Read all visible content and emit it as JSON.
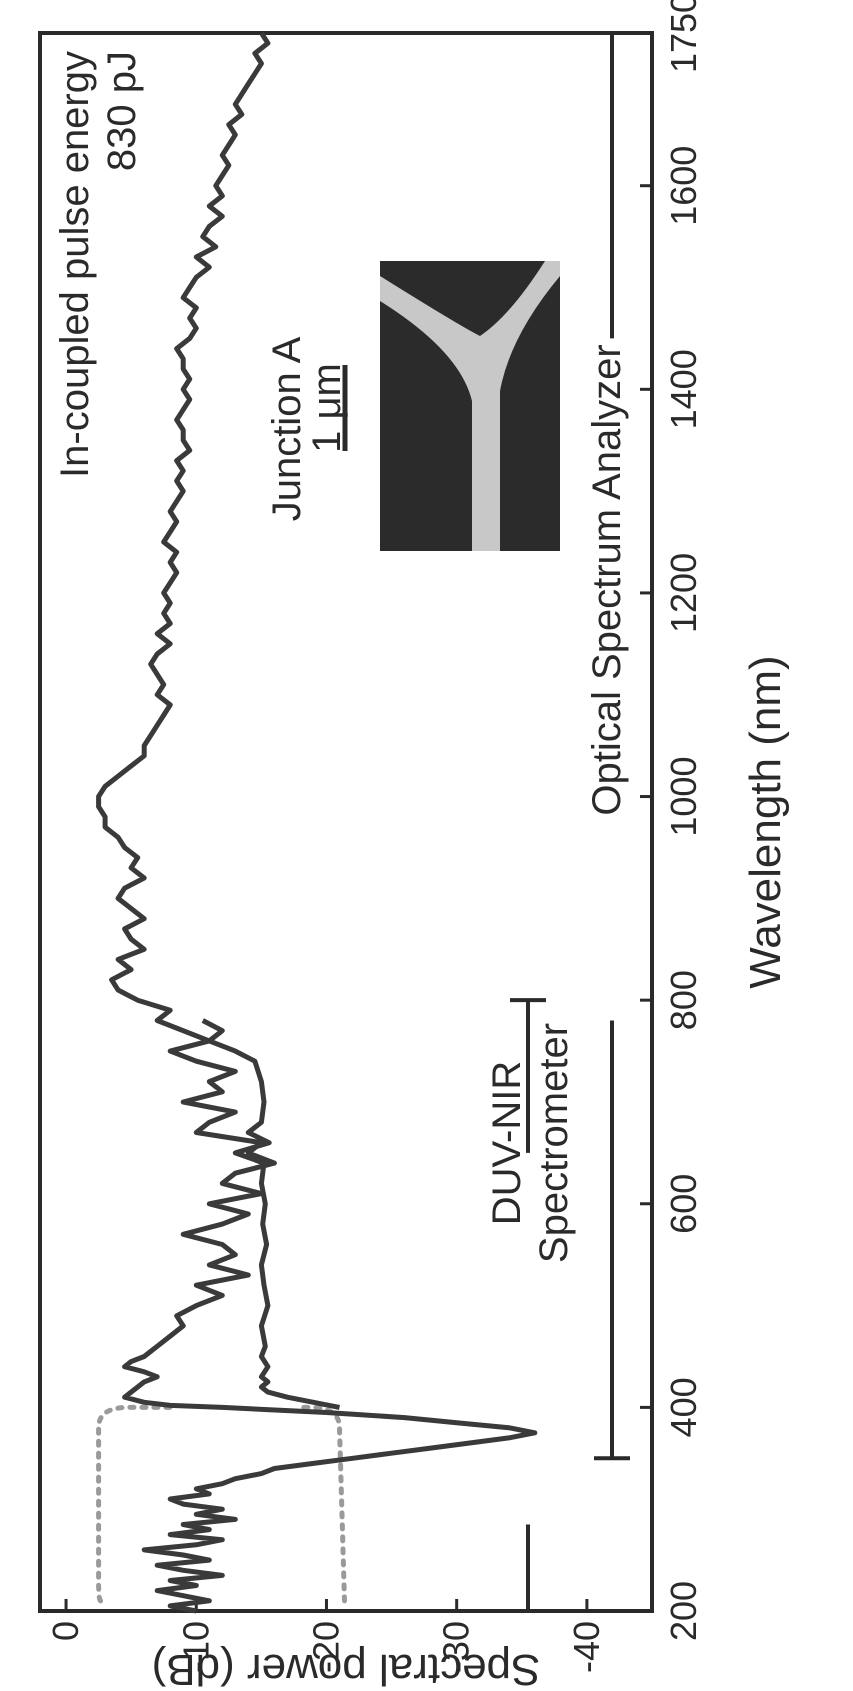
{
  "chart_data": {
    "type": "line",
    "title": "",
    "xlabel": "Wavelength (nm)",
    "ylabel": "Spectral power (dB)",
    "xlim": [
      200,
      1750
    ],
    "ylim": [
      -45,
      2
    ],
    "x_ticks": [
      200,
      400,
      600,
      800,
      1000,
      1200,
      1400,
      1600,
      1750
    ],
    "y_ticks": [
      0,
      -10,
      -20,
      -30,
      -40
    ],
    "grid": false,
    "legend": "none",
    "annotations": {
      "pulse_energy_line1": "In-coupled pulse energy",
      "pulse_energy_line2": "830 pJ",
      "junction_label": "Junction A",
      "scale_bar_label": "1 μm",
      "duv_line1": "DUV-NIR",
      "duv_line2": "Spectrometer",
      "osa_label": "Optical Spectrum Analyzer"
    },
    "instrument_ranges": {
      "duv_nir_spectrometer": [
        200,
        800
      ],
      "optical_spectrum_analyzer": [
        350,
        1750
      ]
    },
    "dotted_guides": {
      "color": "#9a9a9a",
      "upper_level": -2.5,
      "lower_level": -21,
      "x_start": 210,
      "x_end": 400
    },
    "series": [
      {
        "color": "#3a3a3a",
        "x": [
          200,
          205,
          210,
          215,
          220,
          225,
          230,
          235,
          240,
          245,
          250,
          255,
          260,
          265,
          270,
          275,
          280,
          285,
          290,
          295,
          300,
          305,
          310,
          315,
          320,
          325,
          330,
          335,
          340,
          345,
          350,
          355,
          360,
          365,
          370,
          375,
          380,
          385,
          390,
          395,
          400,
          402,
          405,
          410,
          415,
          420,
          425,
          430,
          435,
          440,
          445,
          450,
          455,
          460,
          470,
          480,
          490,
          500,
          510,
          520,
          530,
          540,
          550,
          560,
          570,
          580,
          590,
          600,
          610,
          620,
          630,
          640,
          650,
          660,
          670,
          680,
          690,
          700,
          710,
          720,
          730,
          740,
          750,
          760,
          770,
          780,
          790,
          800,
          810,
          820,
          830,
          840,
          850,
          860,
          870,
          880,
          890,
          900,
          910,
          920,
          930,
          940,
          950,
          960,
          970,
          980,
          990,
          1000,
          1010,
          1020,
          1030,
          1040,
          1050,
          1060,
          1070,
          1080,
          1090,
          1100,
          1110,
          1120,
          1130,
          1140,
          1150,
          1160,
          1170,
          1180,
          1190,
          1200,
          1210,
          1220,
          1230,
          1240,
          1250,
          1260,
          1270,
          1280,
          1290,
          1300,
          1310,
          1320,
          1330,
          1340,
          1350,
          1360,
          1370,
          1380,
          1390,
          1400,
          1410,
          1420,
          1430,
          1440,
          1450,
          1460,
          1470,
          1480,
          1490,
          1500,
          1510,
          1520,
          1530,
          1540,
          1550,
          1560,
          1570,
          1580,
          1590,
          1600,
          1610,
          1620,
          1630,
          1640,
          1650,
          1660,
          1670,
          1680,
          1690,
          1700,
          1710,
          1720,
          1730,
          1740,
          1750
        ],
        "y": [
          -10,
          -8,
          -11,
          -9,
          -7,
          -10,
          -8,
          -12,
          -9,
          -7,
          -11,
          -9,
          -6,
          -10,
          -12,
          -8,
          -11,
          -9,
          -13,
          -10,
          -12,
          -9,
          -8,
          -11,
          -10,
          -12,
          -13,
          -15,
          -16,
          -19,
          -22,
          -25,
          -28,
          -31,
          -34,
          -36,
          -34,
          -30,
          -26,
          -20,
          -12,
          -8,
          -6,
          -4.5,
          -5,
          -5.5,
          -6,
          -7,
          -6,
          -4.5,
          -5,
          -6,
          -6.5,
          -7,
          -8,
          -9,
          -8.5,
          -10,
          -12,
          -10,
          -14,
          -11,
          -13,
          -12,
          -9,
          -12,
          -14,
          -11,
          -15,
          -12,
          -13,
          -16,
          -14,
          -15,
          -10,
          -11,
          -13,
          -9,
          -12,
          -11,
          -13,
          -10,
          -8,
          -11,
          -9,
          -7,
          -8,
          -5.5,
          -4,
          -3.5,
          -5,
          -4,
          -6,
          -5,
          -4.5,
          -6,
          -5,
          -4,
          -4.5,
          -6,
          -5,
          -5.5,
          -4.5,
          -4,
          -3,
          -3,
          -2.5,
          -2.5,
          -3,
          -4,
          -5,
          -6,
          -6,
          -6.5,
          -7,
          -7.5,
          -8,
          -7,
          -7.5,
          -7,
          -6.5,
          -7,
          -8,
          -7,
          -8,
          -7.5,
          -8,
          -7.5,
          -8,
          -8.5,
          -8,
          -8.5,
          -7.5,
          -8,
          -8.5,
          -8,
          -8.5,
          -9,
          -8.5,
          -9,
          -8.5,
          -9.5,
          -9,
          -9,
          -8.5,
          -9,
          -9.5,
          -9,
          -9.5,
          -9,
          -9,
          -8.5,
          -9.5,
          -10,
          -9.5,
          -10,
          -9,
          -9.5,
          -10,
          -11,
          -10,
          -11.5,
          -10.5,
          -11,
          -12,
          -11,
          -12,
          -11.5,
          -12,
          -12.5,
          -12,
          -12.5,
          -13,
          -12.5,
          -13.5,
          -13,
          -13.5,
          -14,
          -14.5,
          -15,
          -14.5,
          -15.5,
          -15
        ]
      },
      {
        "color": "#3a3a3a",
        "x": [
          400,
          405,
          410,
          415,
          420,
          425,
          430,
          440,
          450,
          460,
          480,
          500,
          520,
          540,
          560,
          580,
          600,
          620,
          640,
          650,
          660,
          670,
          680,
          700,
          720,
          740,
          750,
          760,
          770,
          780
        ],
        "y": [
          -21,
          -19,
          -17,
          -15.5,
          -15,
          -15.5,
          -15,
          -15.5,
          -15,
          -15.3,
          -15,
          -15.5,
          -15.2,
          -15,
          -15.4,
          -15.1,
          -15.3,
          -15,
          -15.2,
          -13,
          -15.6,
          -14,
          -15,
          -15.2,
          -15,
          -14.5,
          -13,
          -11,
          -12,
          -10.5
        ]
      }
    ]
  }
}
